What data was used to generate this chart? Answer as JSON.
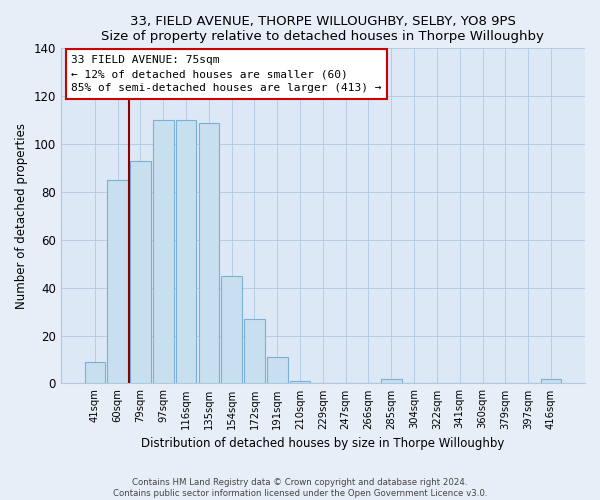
{
  "title": "33, FIELD AVENUE, THORPE WILLOUGHBY, SELBY, YO8 9PS",
  "subtitle": "Size of property relative to detached houses in Thorpe Willoughby",
  "xlabel": "Distribution of detached houses by size in Thorpe Willoughby",
  "ylabel": "Number of detached properties",
  "bar_labels": [
    "41sqm",
    "60sqm",
    "79sqm",
    "97sqm",
    "116sqm",
    "135sqm",
    "154sqm",
    "172sqm",
    "191sqm",
    "210sqm",
    "229sqm",
    "247sqm",
    "266sqm",
    "285sqm",
    "304sqm",
    "322sqm",
    "341sqm",
    "360sqm",
    "379sqm",
    "397sqm",
    "416sqm"
  ],
  "bar_values": [
    9,
    85,
    93,
    110,
    110,
    109,
    45,
    27,
    11,
    1,
    0,
    0,
    0,
    2,
    0,
    0,
    0,
    0,
    0,
    0,
    2
  ],
  "bar_color": "#c8dff0",
  "bar_edge_color": "#7ab0d4",
  "vline_x": 1.5,
  "vline_color": "#8b0000",
  "annotation_line1": "33 FIELD AVENUE: 75sqm",
  "annotation_line2": "← 12% of detached houses are smaller (60)",
  "annotation_line3": "85% of semi-detached houses are larger (413) →",
  "annotation_box_edgecolor": "#cc0000",
  "annotation_box_facecolor": "#ffffff",
  "ylim": [
    0,
    140
  ],
  "yticks": [
    0,
    20,
    40,
    60,
    80,
    100,
    120,
    140
  ],
  "footer_line1": "Contains HM Land Registry data © Crown copyright and database right 2024.",
  "footer_line2": "Contains public sector information licensed under the Open Government Licence v3.0.",
  "bg_color": "#e8eef8",
  "plot_bg_color": "#dce8f5",
  "grid_color": "#b0c8e0"
}
